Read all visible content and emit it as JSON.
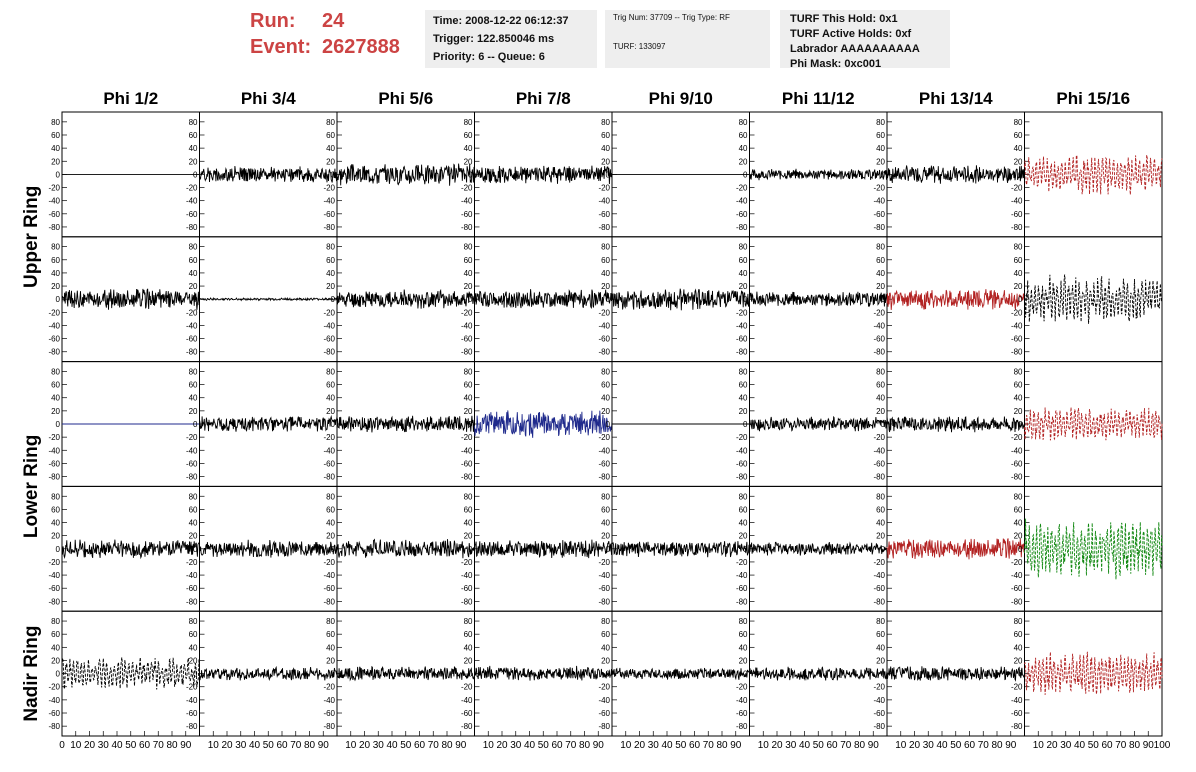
{
  "header": {
    "run_label": "Run:",
    "run_value": "24",
    "event_label": "Event:",
    "event_value": "2627888",
    "time": "Time: 2008-12-22 06:12:37",
    "trigger": "Trigger: 122.850046 ms",
    "priority": "Priority: 6 -- Queue: 6",
    "trig_num": "Trig Num: 37709 -- Trig Type: RF",
    "turf": "TURF: 133097",
    "turf_hold": "TURF This Hold: 0x1",
    "turf_active": "TURF Active Holds: 0xf",
    "labrador": "Labrador AAAAAAAAAA",
    "phi_mask": "Phi Mask: 0xc001"
  },
  "chart_data": {
    "type": "line",
    "columns": [
      "Phi 1/2",
      "Phi 3/4",
      "Phi 5/6",
      "Phi 7/8",
      "Phi 9/10",
      "Phi 11/12",
      "Phi 13/14",
      "Phi 15/16"
    ],
    "rows": [
      "Upper Ring",
      "Lower Ring",
      "Nadir Ring"
    ],
    "panel_rows": 5,
    "yticks": [
      80,
      60,
      40,
      20,
      0,
      -20,
      -40,
      -60,
      -80
    ],
    "ylim": [
      -95,
      95
    ],
    "xticks": [
      0,
      10,
      20,
      30,
      40,
      50,
      60,
      70,
      80,
      90,
      100
    ],
    "xlim": [
      0,
      100
    ],
    "colors": {
      "black": "#000000",
      "red": "#b22222",
      "blue": "#1f2a8c",
      "green": "#118811"
    },
    "panels": [
      [
        {
          "c": "black",
          "a": 0,
          "s": 0,
          "d": false
        },
        {
          "c": "black",
          "a": 13,
          "s": 1,
          "d": false
        },
        {
          "c": "black",
          "a": 18,
          "s": 2,
          "d": false
        },
        {
          "c": "black",
          "a": 15,
          "s": 3,
          "d": false
        },
        {
          "c": "black",
          "a": 0,
          "s": 4,
          "d": false
        },
        {
          "c": "black",
          "a": 9,
          "s": 5,
          "d": false
        },
        {
          "c": "black",
          "a": 15,
          "s": 6,
          "d": false
        },
        {
          "c": "red",
          "a": 26,
          "s": 7,
          "d": true
        }
      ],
      [
        {
          "c": "black",
          "a": 17,
          "s": 8,
          "d": false
        },
        {
          "c": "black",
          "a": 2,
          "s": 9,
          "d": false
        },
        {
          "c": "black",
          "a": 15,
          "s": 10,
          "d": false
        },
        {
          "c": "black",
          "a": 16,
          "s": 11,
          "d": false
        },
        {
          "c": "black",
          "a": 17,
          "s": 12,
          "d": false
        },
        {
          "c": "black",
          "a": 12,
          "s": 13,
          "d": false
        },
        {
          "c": "red",
          "a": 17,
          "s": 14,
          "d": false
        },
        {
          "c": "black",
          "a": 32,
          "s": 15,
          "d": true
        }
      ],
      [
        {
          "c": "blue",
          "a": 0,
          "s": 16,
          "d": false
        },
        {
          "c": "black",
          "a": 13,
          "s": 17,
          "d": false
        },
        {
          "c": "black",
          "a": 14,
          "s": 18,
          "d": false
        },
        {
          "c": "blue",
          "a": 22,
          "s": 19,
          "d": false
        },
        {
          "c": "black",
          "a": 0,
          "s": 20,
          "d": false
        },
        {
          "c": "black",
          "a": 12,
          "s": 21,
          "d": false
        },
        {
          "c": "black",
          "a": 14,
          "s": 22,
          "d": false
        },
        {
          "c": "red",
          "a": 22,
          "s": 23,
          "d": true
        }
      ],
      [
        {
          "c": "black",
          "a": 15,
          "s": 24,
          "d": false
        },
        {
          "c": "black",
          "a": 14,
          "s": 25,
          "d": false
        },
        {
          "c": "black",
          "a": 15,
          "s": 26,
          "d": false
        },
        {
          "c": "black",
          "a": 15,
          "s": 27,
          "d": false
        },
        {
          "c": "black",
          "a": 13,
          "s": 28,
          "d": false
        },
        {
          "c": "black",
          "a": 11,
          "s": 29,
          "d": false
        },
        {
          "c": "red",
          "a": 17,
          "s": 30,
          "d": false
        },
        {
          "c": "green",
          "a": 40,
          "s": 31,
          "d": true
        }
      ],
      [
        {
          "c": "black",
          "a": 22,
          "s": 32,
          "d": true
        },
        {
          "c": "black",
          "a": 11,
          "s": 33,
          "d": false
        },
        {
          "c": "black",
          "a": 12,
          "s": 34,
          "d": false
        },
        {
          "c": "black",
          "a": 12,
          "s": 35,
          "d": false
        },
        {
          "c": "black",
          "a": 10,
          "s": 36,
          "d": false
        },
        {
          "c": "black",
          "a": 11,
          "s": 37,
          "d": false
        },
        {
          "c": "black",
          "a": 12,
          "s": 38,
          "d": false
        },
        {
          "c": "red",
          "a": 28,
          "s": 39,
          "d": true
        }
      ]
    ]
  }
}
